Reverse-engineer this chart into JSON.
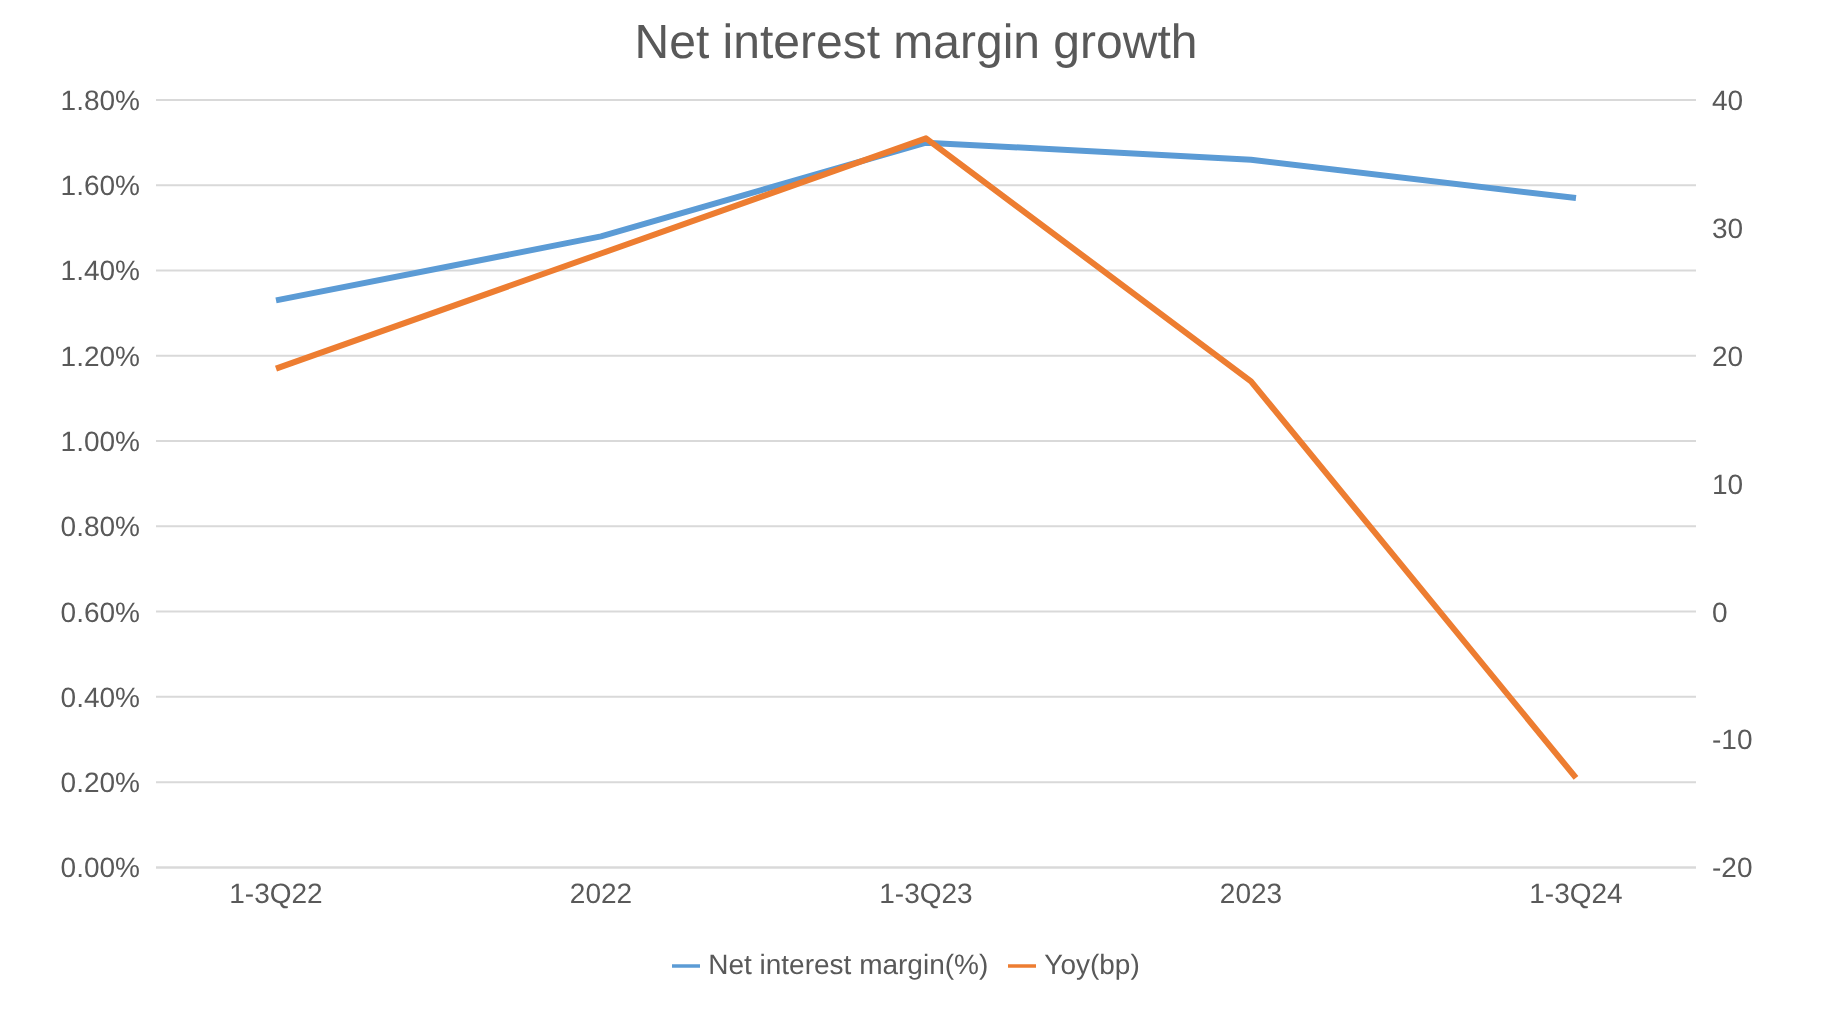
{
  "chart_data": {
    "type": "line",
    "title": "Net interest margin growth",
    "categories": [
      "1-3Q22",
      "2022",
      "1-3Q23",
      "2023",
      "1-3Q24"
    ],
    "series": [
      {
        "name": "Net interest margin(%)",
        "color": "#5b9bd5",
        "values": [
          1.33,
          1.48,
          1.7,
          1.66,
          1.57
        ]
      },
      {
        "name": "Yoy(bp)",
        "color": "#ed7d31",
        "axis": "y2",
        "values": [
          19,
          28,
          37,
          18,
          -13
        ]
      }
    ],
    "ylim": [
      0,
      1.8
    ],
    "yticks": [
      {
        "value": 0,
        "label": "0.00%"
      },
      {
        "value": 0.2,
        "label": "0.20%"
      },
      {
        "value": 0.4,
        "label": "0.40%"
      },
      {
        "value": 0.6,
        "label": "0.60%"
      },
      {
        "value": 0.8,
        "label": "0.80%"
      },
      {
        "value": 1.0,
        "label": "1.00%"
      },
      {
        "value": 1.2,
        "label": "1.20%"
      },
      {
        "value": 1.4,
        "label": "1.40%"
      },
      {
        "value": 1.6,
        "label": "1.60%"
      },
      {
        "value": 1.8,
        "label": "1.80%"
      }
    ],
    "y2lim": [
      -20,
      40
    ],
    "y2ticks": [
      -20,
      -10,
      0,
      10,
      20,
      30,
      40
    ],
    "grid": "y",
    "legend": "bottom",
    "marker": "none",
    "line_style": "solid"
  }
}
